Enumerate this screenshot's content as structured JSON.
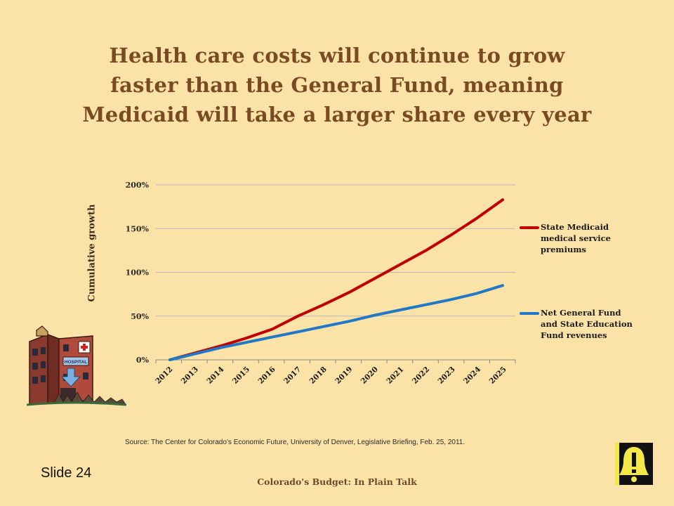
{
  "slide": {
    "title_lines": [
      "Health care costs will continue to grow",
      "faster than the General Fund, meaning",
      "Medicaid will take a larger share every year"
    ],
    "source": "Source: The Center for Colorado’s Economic Future, University of Denver, Legislative Briefing, Feb. 25, 2011.",
    "slide_number": "Slide 24",
    "footer": "Colorado's Budget: In Plain Talk",
    "hospital_sign": "HOSPITAL"
  },
  "colors": {
    "background": "#fbe3a8",
    "title": "#7a4a22",
    "medicaid_series": "#c00000",
    "general_fund_series": "#1f78c8"
  },
  "chart_data": {
    "type": "line",
    "title": "",
    "xlabel": "",
    "ylabel": "Cumulative growth",
    "x": [
      "2012",
      "2013",
      "2014",
      "2015",
      "2016",
      "2017",
      "2018",
      "2019",
      "2020",
      "2021",
      "2022",
      "2023",
      "2024",
      "2025"
    ],
    "ylim": [
      0,
      200
    ],
    "yticks": [
      0,
      50,
      100,
      150,
      200
    ],
    "ytick_labels": [
      "0%",
      "50%",
      "100%",
      "150%",
      "200%"
    ],
    "grid": true,
    "legend_position": "right",
    "series": [
      {
        "name": "State Medicaid medical service premiums",
        "name_lines": [
          "State Medicaid",
          "medical service",
          "premiums"
        ],
        "color": "#c00000",
        "values": [
          0,
          8,
          16,
          25,
          35,
          50,
          63,
          77,
          93,
          109,
          125,
          143,
          162,
          183
        ]
      },
      {
        "name": "Net General Fund and State Education Fund revenues",
        "name_lines": [
          "Net General Fund",
          "and State Education",
          "Fund revenues"
        ],
        "color": "#1f78c8",
        "values": [
          0,
          7,
          14,
          20,
          26,
          32,
          38,
          44,
          51,
          57,
          63,
          69,
          76,
          85
        ]
      }
    ]
  }
}
